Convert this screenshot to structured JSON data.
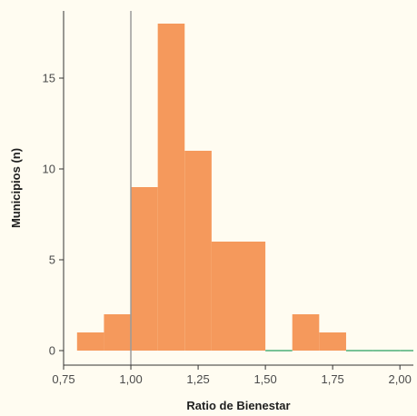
{
  "chart_data": {
    "type": "bar",
    "xlabel": "Ratio de Bienestar",
    "ylabel": "Municipios (n)",
    "xlim": [
      0.75,
      2.05
    ],
    "ylim": [
      -0.8,
      18.7
    ],
    "bin_width": 0.1,
    "bins": [
      {
        "x0": 0.8,
        "x1": 0.9,
        "count": 1
      },
      {
        "x0": 0.9,
        "x1": 1.0,
        "count": 2
      },
      {
        "x0": 1.0,
        "x1": 1.1,
        "count": 9
      },
      {
        "x0": 1.1,
        "x1": 1.2,
        "count": 18
      },
      {
        "x0": 1.2,
        "x1": 1.3,
        "count": 11
      },
      {
        "x0": 1.3,
        "x1": 1.4,
        "count": 6
      },
      {
        "x0": 1.4,
        "x1": 1.5,
        "count": 6
      },
      {
        "x0": 1.5,
        "x1": 1.6,
        "count": 0
      },
      {
        "x0": 1.6,
        "x1": 1.7,
        "count": 2
      },
      {
        "x0": 1.7,
        "x1": 1.8,
        "count": 1
      },
      {
        "x0": 1.8,
        "x1": 1.9,
        "count": 0
      },
      {
        "x0": 1.9,
        "x1": 2.0,
        "count": 0
      },
      {
        "x0": 2.0,
        "x1": 2.05,
        "count": 0
      }
    ],
    "x_ticks": [
      {
        "value": 0.75,
        "label": "0,75"
      },
      {
        "value": 1.0,
        "label": "1,00"
      },
      {
        "value": 1.25,
        "label": "1,25"
      },
      {
        "value": 1.5,
        "label": "1,50"
      },
      {
        "value": 1.75,
        "label": "1,75"
      },
      {
        "value": 2.0,
        "label": "2,00"
      }
    ],
    "y_ticks": [
      {
        "value": 0,
        "label": "0"
      },
      {
        "value": 5,
        "label": "5"
      },
      {
        "value": 10,
        "label": "10"
      },
      {
        "value": 15,
        "label": "15"
      }
    ],
    "reference_line_x": 1.0,
    "grid": false,
    "colors": {
      "bar": "#f5995c",
      "zero_line": "#4caf78",
      "reference_line": "#9a9a9a",
      "axis": "#333333",
      "background": "#fffcf1"
    }
  }
}
